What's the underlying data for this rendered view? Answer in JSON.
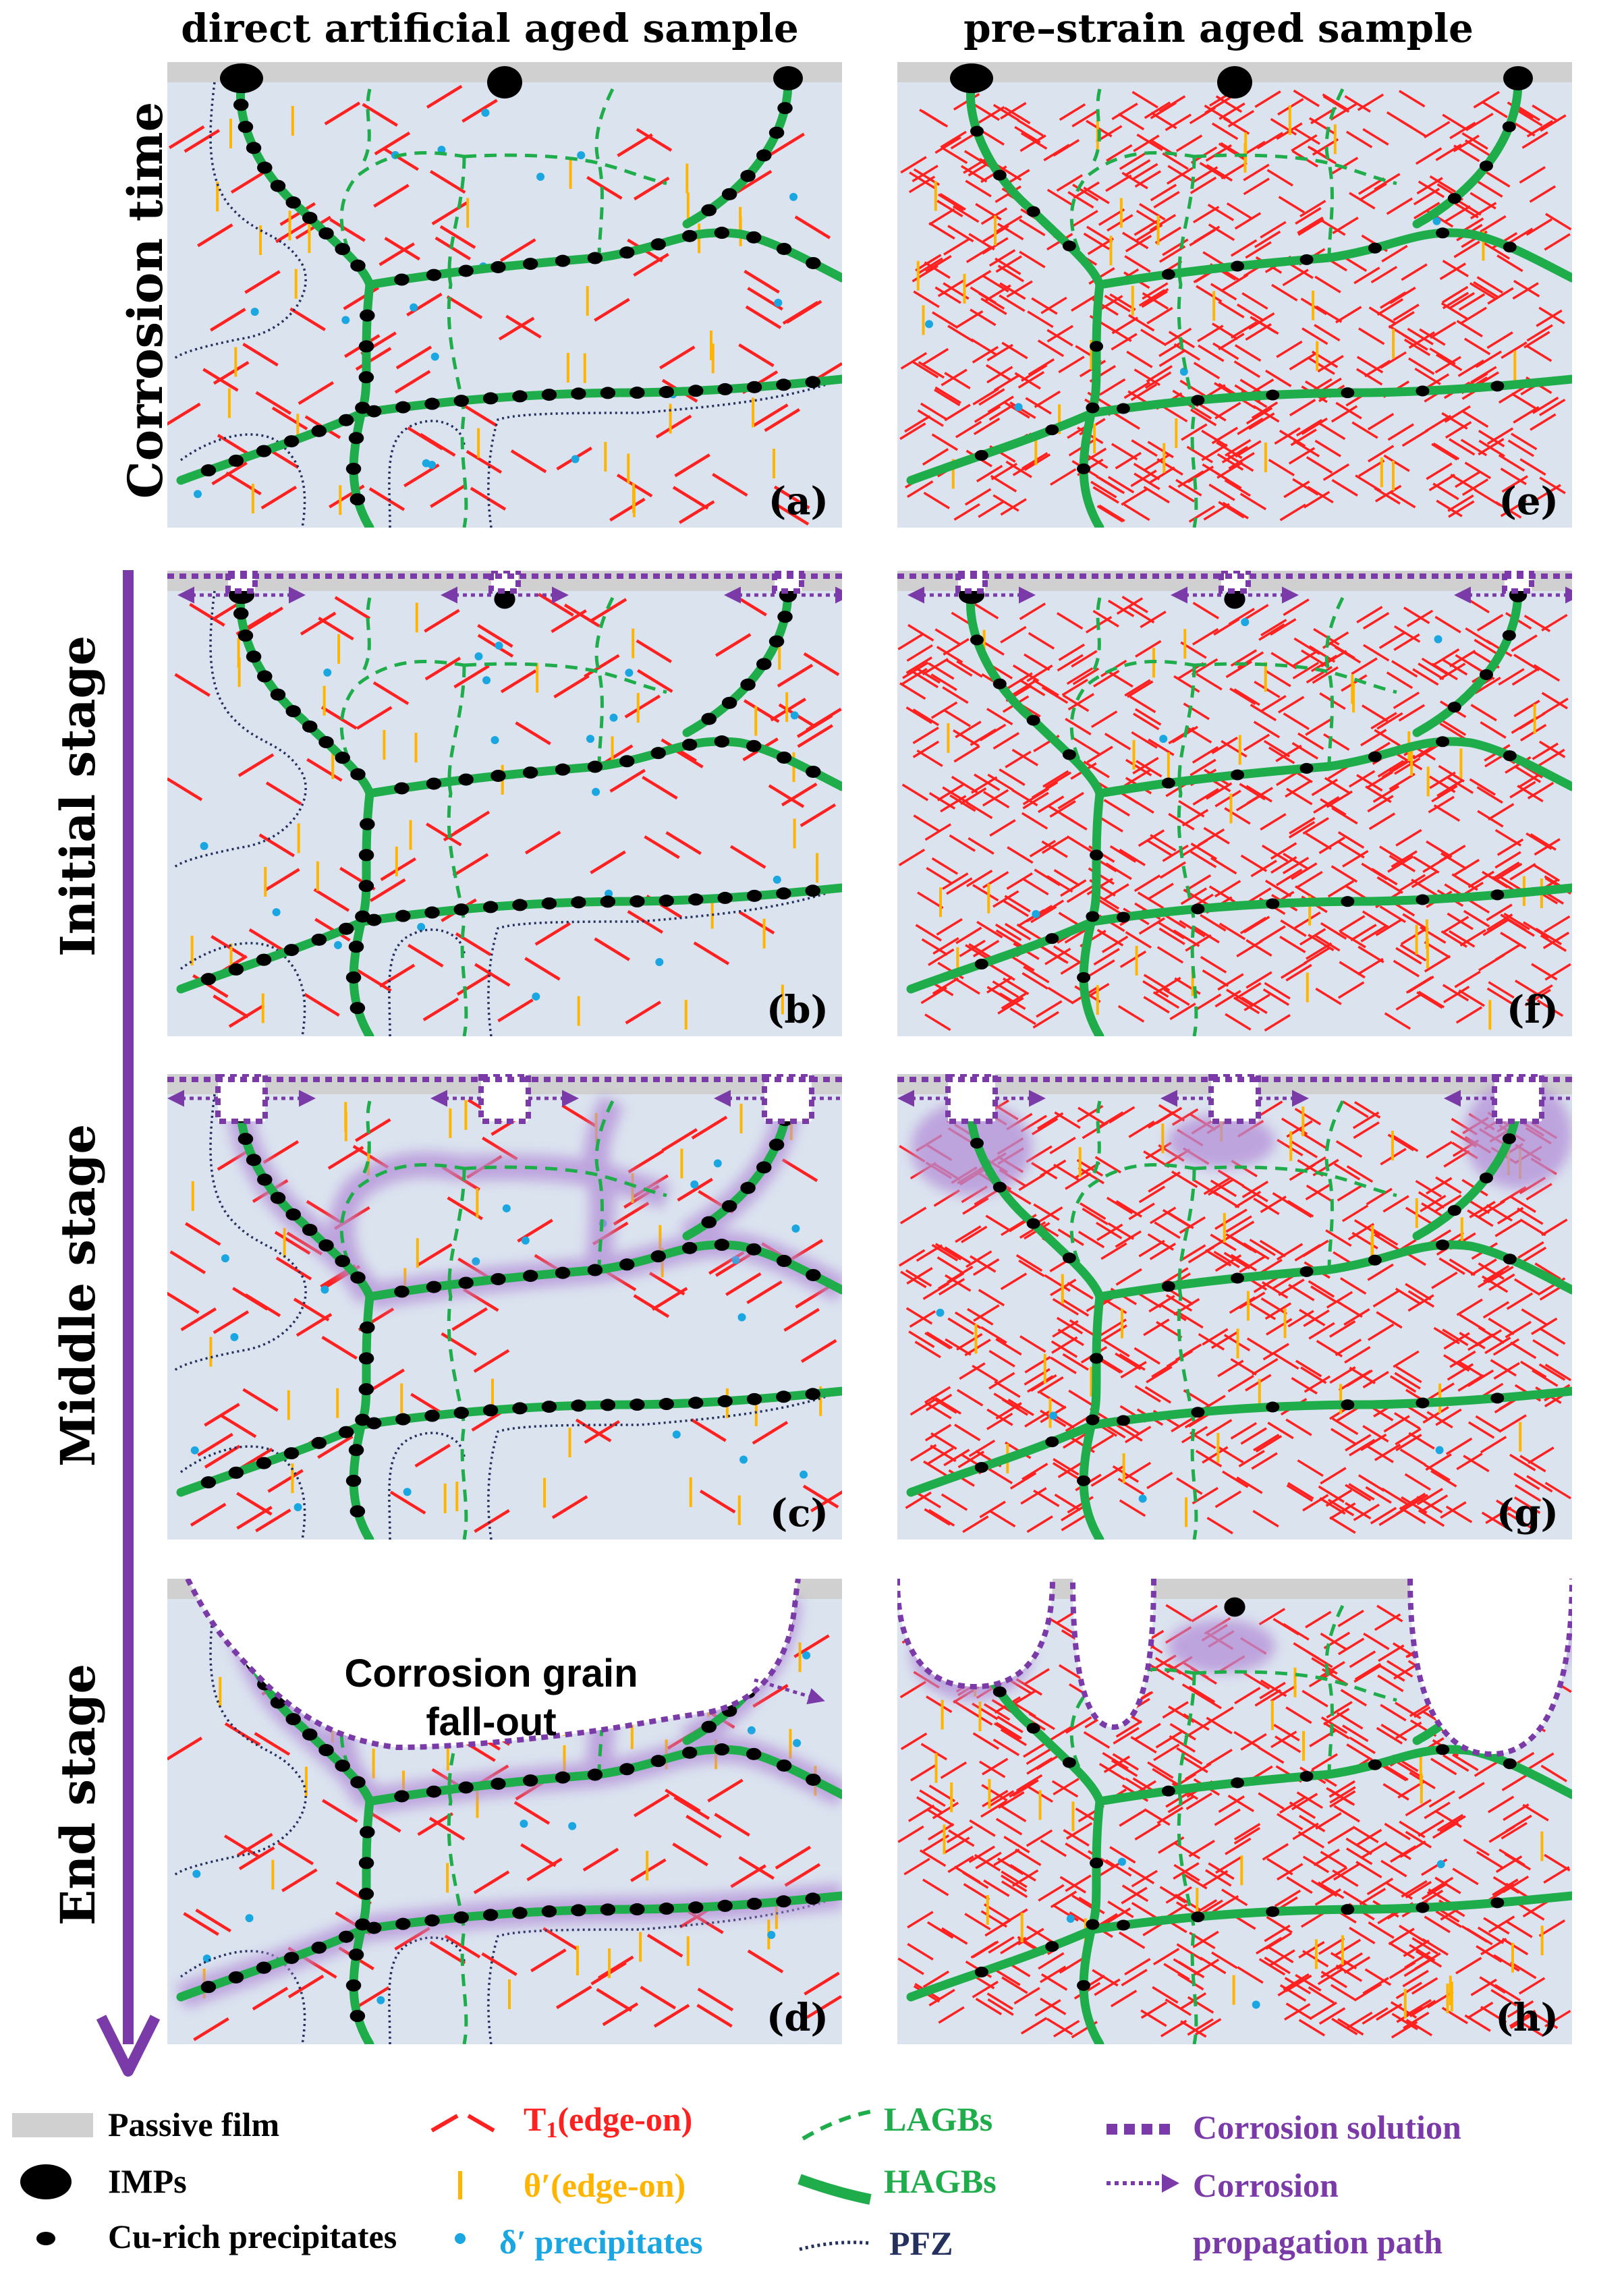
{
  "columns": {
    "left": "direct artificial aged sample",
    "right": "pre–strain aged sample"
  },
  "rows": {
    "r0": "Corrosion time",
    "r1": "Initial stage",
    "r2": "Middle stage",
    "r3": "End stage"
  },
  "panels": {
    "a": "(a)",
    "b": "(b)",
    "c": "(c)",
    "d": "(d)",
    "e": "(e)",
    "f": "(f)",
    "g": "(g)",
    "h": "(h)"
  },
  "fallout": {
    "line1": "Corrosion grain",
    "line2": "fall-out"
  },
  "legend": {
    "passive_film": "Passive film",
    "imps": "IMPs",
    "cu_rich": "Cu-rich precipitates",
    "t1_prefix": "T",
    "t1_sub": "1",
    "t1_suffix": "(edge-on)",
    "theta": "θ′(edge-on)",
    "delta": "δ′ precipitates",
    "lagbs": "LAGBs",
    "hagbs": "HAGBs",
    "pfz": "PFZ",
    "corrosion_solution": "Corrosion solution",
    "propagation_line1": "Corrosion",
    "propagation_line2": "propagation path"
  },
  "colors": {
    "matrix": "#dbe3ef",
    "passive_film": "#d0d0d0",
    "hagb": "#1fad4b",
    "lagb": "#1fad4b",
    "t1": "#ff2020",
    "theta": "#ffb400",
    "delta": "#1aa6e0",
    "pfz": "#24305e",
    "corrosion": "#7a3aa8",
    "corrosion_glow": "#b48fd8",
    "legend_t1": "#ff2020",
    "legend_theta": "#ffb400",
    "legend_delta": "#1aa6e0",
    "legend_lagb": "#1fad4b",
    "legend_pfz": "#24305e",
    "legend_corrosion": "#7a3aa8"
  },
  "icons": {
    "arrow": "corrosion-time-arrow",
    "propagation": "dotted-arrow-icon"
  }
}
